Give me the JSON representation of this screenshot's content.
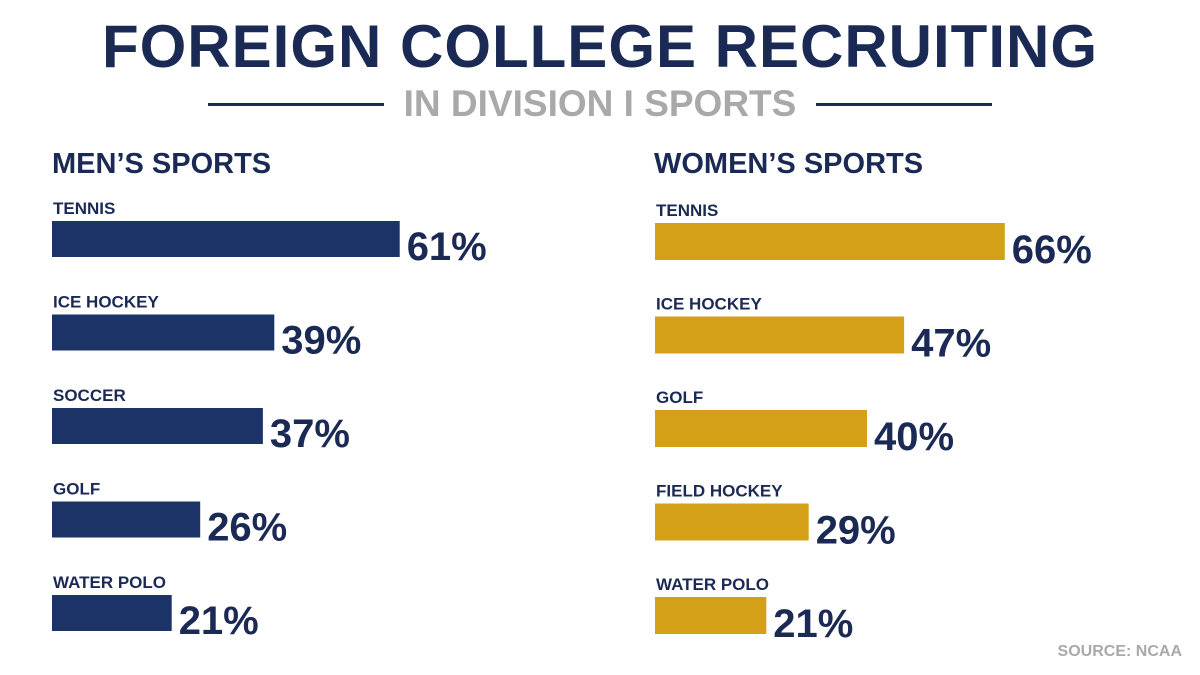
{
  "header": {
    "title": "FOREIGN COLLEGE RECRUITING",
    "subtitle": "IN DIVISION I SPORTS"
  },
  "source": "SOURCE: NCAA",
  "chart_data": [
    {
      "type": "bar",
      "orientation": "horizontal",
      "title": "MEN’S SPORTS",
      "categories": [
        "TENNIS",
        "ICE HOCKEY",
        "SOCCER",
        "GOLF",
        "WATER POLO"
      ],
      "values": [
        61,
        39,
        37,
        26,
        21
      ],
      "value_labels": [
        "61%",
        "39%",
        "37%",
        "26%",
        "21%"
      ],
      "unit": "%",
      "color": "#1b3366",
      "grid": false,
      "axes_visible": false
    },
    {
      "type": "bar",
      "orientation": "horizontal",
      "title": "WOMEN’S SPORTS",
      "categories": [
        "TENNIS",
        "ICE HOCKEY",
        "GOLF",
        "FIELD HOCKEY",
        "WATER POLO"
      ],
      "values": [
        66,
        47,
        40,
        29,
        21
      ],
      "value_labels": [
        "66%",
        "47%",
        "40%",
        "29%",
        "21%"
      ],
      "unit": "%",
      "color": "#d4a017",
      "grid": false,
      "axes_visible": false
    }
  ],
  "colors": {
    "navy": "#1b2a55",
    "men_bar": "#1b3366",
    "women_bar": "#d4a017",
    "gray": "#a9a9a9"
  }
}
